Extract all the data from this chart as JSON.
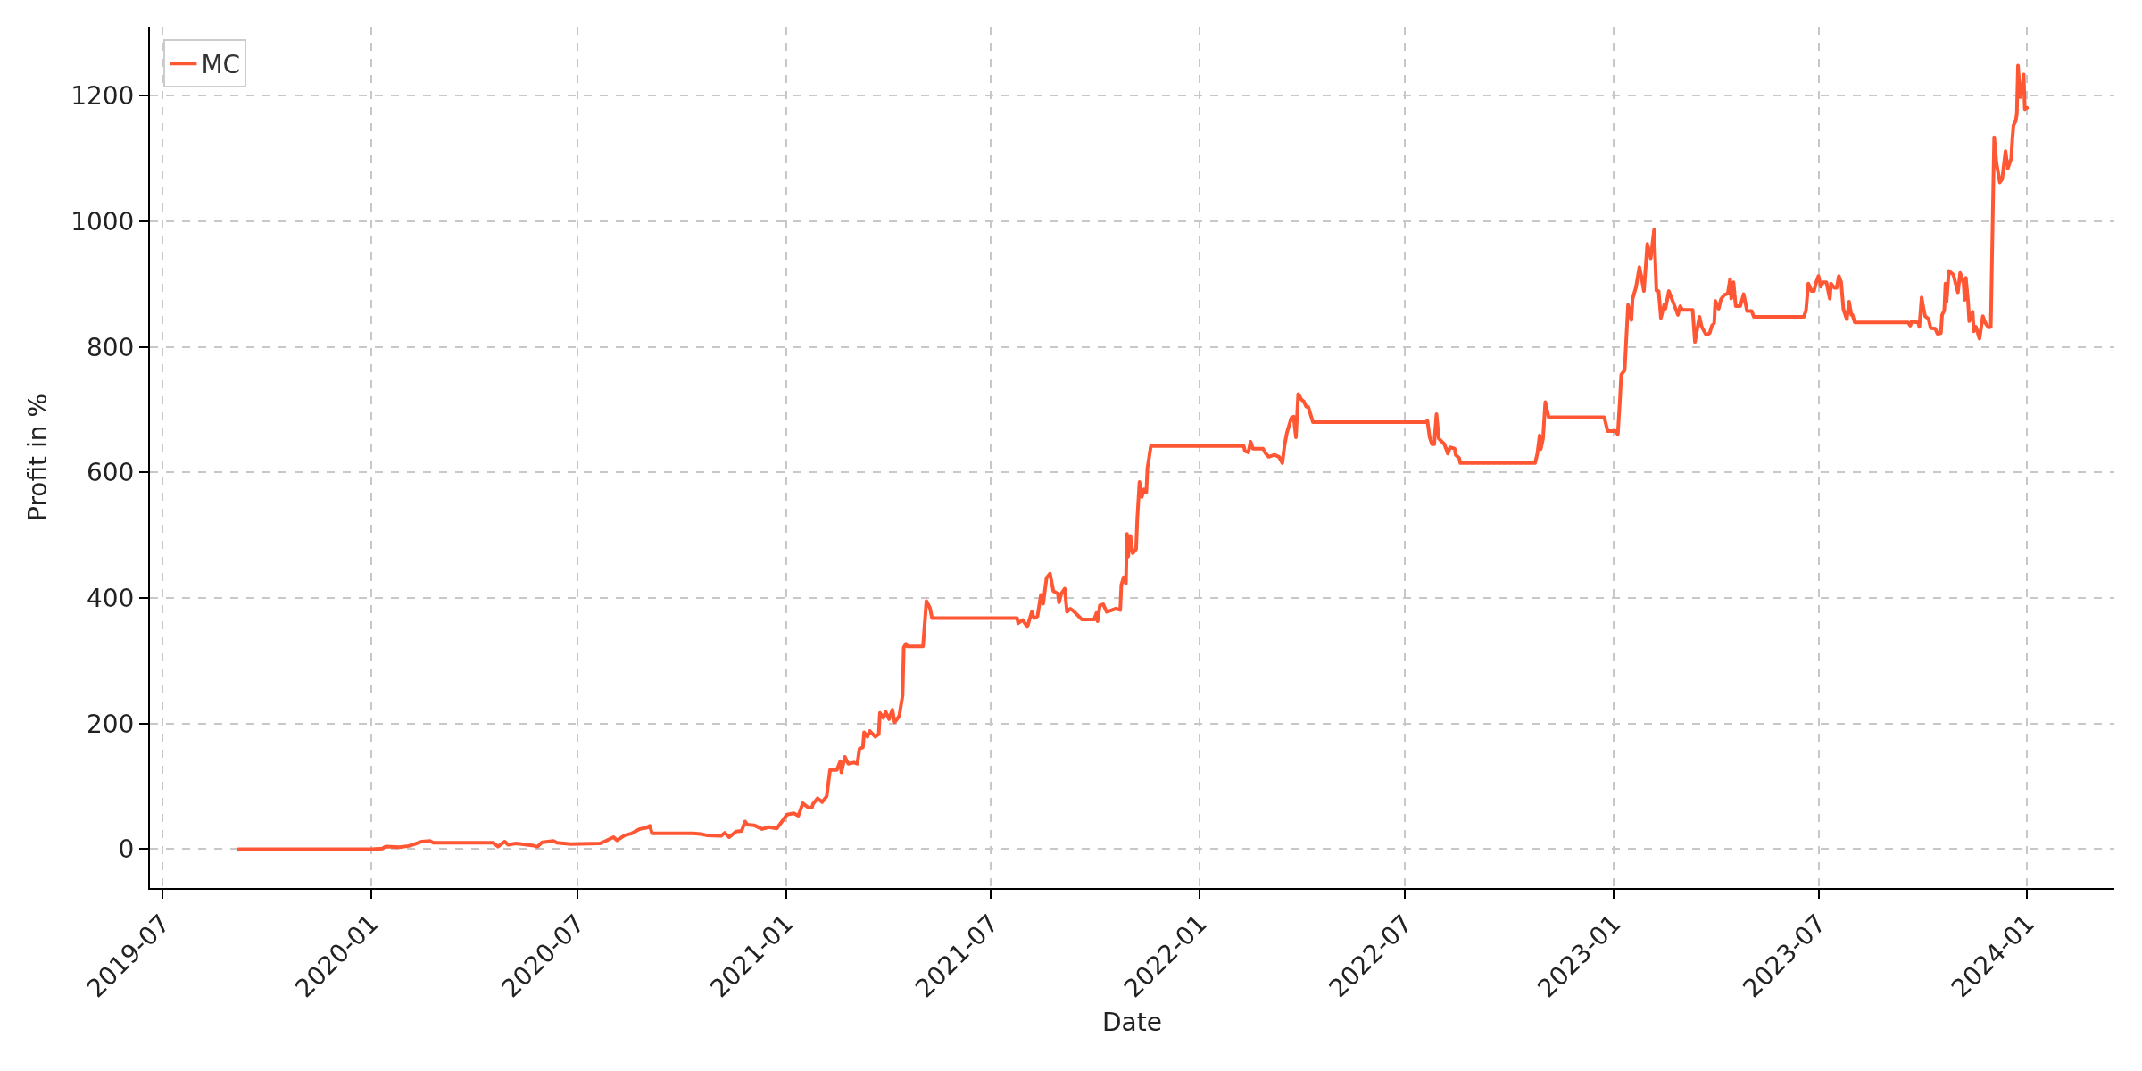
{
  "chart_data": {
    "type": "line",
    "xlabel": "Date",
    "ylabel": "Profit in %",
    "x": [
      "2019-09-06",
      "2020-01-01",
      "2020-01-11",
      "2020-01-14",
      "2020-01-26",
      "2020-02-03",
      "2020-02-07",
      "2020-02-15",
      "2020-02-22",
      "2020-02-25",
      "2020-04-18",
      "2020-04-22",
      "2020-04-28",
      "2020-05-01",
      "2020-05-08",
      "2020-05-22",
      "2020-05-27",
      "2020-05-31",
      "2020-06-10",
      "2020-06-13",
      "2020-06-25",
      "2020-07-21",
      "2020-07-26",
      "2020-08-02",
      "2020-08-05",
      "2020-08-12",
      "2020-08-18",
      "2020-08-25",
      "2020-08-31",
      "2020-09-03",
      "2020-09-05",
      "2020-10-11",
      "2020-10-18",
      "2020-10-23",
      "2020-11-05",
      "2020-11-08",
      "2020-11-12",
      "2020-11-18",
      "2020-11-23",
      "2020-11-26",
      "2020-11-28",
      "2020-12-04",
      "2020-12-11",
      "2020-12-17",
      "2020-12-24",
      "2020-12-29",
      "2021-01-02",
      "2021-01-08",
      "2021-01-12",
      "2021-01-16",
      "2021-01-21",
      "2021-01-24",
      "2021-01-25",
      "2021-01-29",
      "2021-02-02",
      "2021-02-06",
      "2021-02-09",
      "2021-02-15",
      "2021-02-18",
      "2021-02-19",
      "2021-02-22",
      "2021-02-25",
      "2021-03-02",
      "2021-03-05",
      "2021-03-07",
      "2021-03-10",
      "2021-03-11",
      "2021-03-14",
      "2021-03-16",
      "2021-03-21",
      "2021-03-24",
      "2021-03-25",
      "2021-03-28",
      "2021-03-30",
      "2021-04-02",
      "2021-04-05",
      "2021-04-07",
      "2021-04-11",
      "2021-04-14",
      "2021-04-15",
      "2021-04-17",
      "2021-04-18",
      "2021-05-02",
      "2021-05-05",
      "2021-05-08",
      "2021-05-10",
      "2021-07-24",
      "2021-07-25",
      "2021-07-29",
      "2021-08-02",
      "2021-08-06",
      "2021-08-08",
      "2021-08-11",
      "2021-08-14",
      "2021-08-16",
      "2021-08-19",
      "2021-08-22",
      "2021-08-25",
      "2021-08-29",
      "2021-08-30",
      "2021-09-01",
      "2021-09-04",
      "2021-09-06",
      "2021-09-09",
      "2021-09-12",
      "2021-09-19",
      "2021-09-30",
      "2021-10-02",
      "2021-10-03",
      "2021-10-05",
      "2021-10-08",
      "2021-10-11",
      "2021-10-19",
      "2021-10-23",
      "2021-10-24",
      "2021-10-26",
      "2021-10-28",
      "2021-10-29",
      "2021-10-30",
      "2021-11-01",
      "2021-11-03",
      "2021-11-06",
      "2021-11-07",
      "2021-11-09",
      "2021-11-11",
      "2021-11-13",
      "2021-11-15",
      "2021-11-16",
      "2021-11-19",
      "2022-02-09",
      "2022-02-10",
      "2022-02-13",
      "2022-02-15",
      "2022-02-17",
      "2022-02-26",
      "2022-02-28",
      "2022-03-03",
      "2022-03-08",
      "2022-03-12",
      "2022-03-15",
      "2022-03-17",
      "2022-03-19",
      "2022-03-23",
      "2022-03-25",
      "2022-03-27",
      "2022-03-29",
      "2022-04-01",
      "2022-04-03",
      "2022-04-05",
      "2022-04-07",
      "2022-04-11",
      "2022-07-19",
      "2022-07-21",
      "2022-07-23",
      "2022-07-25",
      "2022-07-27",
      "2022-07-29",
      "2022-07-31",
      "2022-08-05",
      "2022-08-08",
      "2022-08-10",
      "2022-08-14",
      "2022-08-15",
      "2022-08-18",
      "2022-08-19",
      "2022-10-24",
      "2022-10-26",
      "2022-10-28",
      "2022-10-29",
      "2022-10-31",
      "2022-11-02",
      "2022-11-05",
      "2022-12-24",
      "2022-12-27",
      "2023-01-03",
      "2023-01-05",
      "2023-01-07",
      "2023-01-08",
      "2023-01-11",
      "2023-01-14",
      "2023-01-17",
      "2023-01-18",
      "2023-01-21",
      "2023-01-24",
      "2023-01-26",
      "2023-01-28",
      "2023-01-31",
      "2023-02-03",
      "2023-02-06",
      "2023-02-08",
      "2023-02-10",
      "2023-02-12",
      "2023-02-15",
      "2023-02-16",
      "2023-02-19",
      "2023-02-22",
      "2023-02-27",
      "2023-03-01",
      "2023-03-03",
      "2023-03-12",
      "2023-03-14",
      "2023-03-18",
      "2023-03-20",
      "2023-03-24",
      "2023-03-27",
      "2023-03-29",
      "2023-03-31",
      "2023-04-01",
      "2023-04-04",
      "2023-04-06",
      "2023-04-09",
      "2023-04-12",
      "2023-04-14",
      "2023-04-15",
      "2023-04-17",
      "2023-04-19",
      "2023-04-23",
      "2023-04-26",
      "2023-04-29",
      "2023-05-03",
      "2023-05-05",
      "2023-06-18",
      "2023-06-20",
      "2023-06-22",
      "2023-06-25",
      "2023-06-27",
      "2023-06-29",
      "2023-07-01",
      "2023-07-03",
      "2023-07-05",
      "2023-07-08",
      "2023-07-11",
      "2023-07-12",
      "2023-07-15",
      "2023-07-17",
      "2023-07-19",
      "2023-07-21",
      "2023-07-23",
      "2023-07-26",
      "2023-07-28",
      "2023-07-30",
      "2023-07-31",
      "2023-08-02",
      "2023-09-18",
      "2023-09-20",
      "2023-09-21",
      "2023-09-27",
      "2023-09-28",
      "2023-09-30",
      "2023-10-01",
      "2023-10-03",
      "2023-10-06",
      "2023-10-08",
      "2023-10-12",
      "2023-10-14",
      "2023-10-17",
      "2023-10-18",
      "2023-10-20",
      "2023-10-21",
      "2023-10-22",
      "2023-10-24",
      "2023-10-28",
      "2023-10-30",
      "2023-11-01",
      "2023-11-03",
      "2023-11-06",
      "2023-11-07",
      "2023-11-08",
      "2023-11-10",
      "2023-11-11",
      "2023-11-14",
      "2023-11-15",
      "2023-11-17",
      "2023-11-20",
      "2023-11-23",
      "2023-11-25",
      "2023-11-28",
      "2023-11-30",
      "2023-12-03",
      "2023-12-05",
      "2023-12-08",
      "2023-12-10",
      "2023-12-13",
      "2023-12-15",
      "2023-12-18",
      "2023-12-19",
      "2023-12-20",
      "2023-12-22",
      "2023-12-23",
      "2023-12-24",
      "2023-12-26",
      "2023-12-28",
      "2023-12-29",
      "2023-12-30",
      "2024-01-01"
    ],
    "series": [
      {
        "name": "MC",
        "color": "#ff5733",
        "values": [
          0,
          0,
          1,
          4,
          3,
          5,
          7,
          12,
          13,
          10,
          10,
          4,
          12,
          7,
          9,
          6,
          4,
          11,
          13,
          10,
          8,
          9,
          13,
          19,
          14,
          22,
          25,
          32,
          34,
          37,
          25,
          25,
          24,
          22,
          21,
          26,
          19,
          28,
          29,
          44,
          39,
          38,
          32,
          35,
          33,
          45,
          55,
          57,
          53,
          73,
          66,
          66,
          72,
          81,
          75,
          84,
          126,
          126,
          140,
          122,
          147,
          136,
          138,
          136,
          160,
          162,
          186,
          179,
          188,
          179,
          183,
          217,
          209,
          219,
          207,
          222,
          202,
          212,
          245,
          321,
          327,
          323,
          323,
          395,
          385,
          368,
          368,
          360,
          365,
          354,
          378,
          368,
          371,
          405,
          391,
          432,
          439,
          411,
          407,
          393,
          407,
          415,
          378,
          383,
          379,
          366,
          366,
          376,
          363,
          388,
          390,
          378,
          383,
          381,
          421,
          433,
          423,
          502,
          466,
          499,
          471,
          478,
          525,
          585,
          561,
          573,
          568,
          607,
          642,
          642,
          634,
          632,
          649,
          638,
          638,
          631,
          625,
          628,
          625,
          615,
          644,
          663,
          687,
          689,
          656,
          725,
          716,
          713,
          705,
          704,
          680,
          680,
          682,
          656,
          645,
          645,
          693,
          654,
          645,
          630,
          640,
          638,
          628,
          623,
          615,
          615,
          630,
          659,
          637,
          654,
          712,
          688,
          688,
          666,
          666,
          661,
          720,
          756,
          763,
          867,
          843,
          877,
          895,
          927,
          910,
          889,
          964,
          941,
          987,
          890,
          889,
          846,
          868,
          861,
          889,
          875,
          851,
          865,
          859,
          859,
          808,
          848,
          832,
          819,
          822,
          834,
          838,
          873,
          861,
          876,
          883,
          885,
          908,
          877,
          903,
          865,
          865,
          884,
          857,
          857,
          848,
          848,
          858,
          901,
          889,
          889,
          903,
          913,
          896,
          903,
          903,
          877,
          901,
          894,
          894,
          913,
          903,
          860,
          844,
          872,
          851,
          851,
          839,
          839,
          834,
          840,
          839,
          832,
          879,
          868,
          849,
          845,
          830,
          829,
          821,
          822,
          851,
          858,
          901,
          872,
          921,
          915,
          901,
          887,
          918,
          901,
          875,
          910,
          872,
          841,
          856,
          825,
          832,
          813,
          849,
          839,
          831,
          832,
          1134,
          1093,
          1062,
          1067,
          1112,
          1084,
          1100,
          1131,
          1153,
          1160,
          1172,
          1248,
          1198,
          1215,
          1234,
          1179,
          1181
        ]
      }
    ],
    "xlim": [
      "2019-06-20",
      "2024-03-18"
    ],
    "ylim": [
      -62,
      1310
    ],
    "xticks": [
      "2019-07",
      "2020-01",
      "2020-07",
      "2021-01",
      "2021-07",
      "2022-01",
      "2022-07",
      "2023-01",
      "2023-07",
      "2024-01"
    ],
    "yticks": [
      0,
      200,
      400,
      600,
      800,
      1000,
      1200
    ],
    "grid": true,
    "legend": "top left",
    "line_style": "solid"
  }
}
